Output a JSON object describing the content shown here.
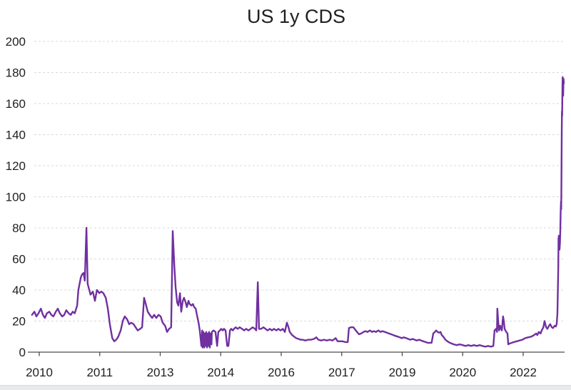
{
  "colors": {
    "line": "#7030A0",
    "gridline": "#D9D9D9",
    "axis": "#4D4D4D",
    "text": "#1F1F1F",
    "bottom_strip": "#E8E9EB",
    "background": "#FFFFFF"
  },
  "chart_data": {
    "type": "line",
    "title": "US 1y CDS",
    "legend": "none",
    "grid": "horizontal-dashed",
    "ylim": [
      0,
      200
    ],
    "xlim": [
      2009.8,
      2023.05
    ],
    "y_ticks": [
      0,
      20,
      40,
      60,
      80,
      100,
      120,
      140,
      160,
      180,
      200
    ],
    "x_ticks": [
      {
        "label": "2010",
        "pos": 2010
      },
      {
        "label": "2011",
        "pos": 2011.5
      },
      {
        "label": "2013",
        "pos": 2013
      },
      {
        "label": "2014",
        "pos": 2014.5
      },
      {
        "label": "2016",
        "pos": 2016
      },
      {
        "label": "2017",
        "pos": 2017.5
      },
      {
        "label": "2019",
        "pos": 2019
      },
      {
        "label": "2020",
        "pos": 2020.5
      },
      {
        "label": "2022",
        "pos": 2022
      }
    ],
    "series": [
      {
        "name": "US 1y CDS",
        "color": "#7030A0",
        "points": [
          [
            2009.82,
            24
          ],
          [
            2009.88,
            26
          ],
          [
            2009.93,
            23
          ],
          [
            2009.98,
            25
          ],
          [
            2010.04,
            28
          ],
          [
            2010.09,
            24
          ],
          [
            2010.14,
            22
          ],
          [
            2010.19,
            25
          ],
          [
            2010.25,
            26
          ],
          [
            2010.3,
            24
          ],
          [
            2010.35,
            23
          ],
          [
            2010.41,
            26
          ],
          [
            2010.46,
            28
          ],
          [
            2010.51,
            25
          ],
          [
            2010.57,
            23
          ],
          [
            2010.62,
            24
          ],
          [
            2010.67,
            27
          ],
          [
            2010.73,
            25
          ],
          [
            2010.78,
            24
          ],
          [
            2010.83,
            26
          ],
          [
            2010.88,
            25
          ],
          [
            2010.94,
            30
          ],
          [
            2010.97,
            40
          ],
          [
            2011.03,
            48
          ],
          [
            2011.06,
            50
          ],
          [
            2011.1,
            51
          ],
          [
            2011.13,
            46
          ],
          [
            2011.17,
            80
          ],
          [
            2011.2,
            44
          ],
          [
            2011.24,
            40
          ],
          [
            2011.27,
            37
          ],
          [
            2011.33,
            39
          ],
          [
            2011.38,
            33
          ],
          [
            2011.43,
            40
          ],
          [
            2011.49,
            38
          ],
          [
            2011.54,
            39
          ],
          [
            2011.59,
            38
          ],
          [
            2011.65,
            35
          ],
          [
            2011.7,
            28
          ],
          [
            2011.75,
            18
          ],
          [
            2011.81,
            9
          ],
          [
            2011.86,
            7
          ],
          [
            2011.91,
            8
          ],
          [
            2011.96,
            10
          ],
          [
            2012.02,
            14
          ],
          [
            2012.07,
            20
          ],
          [
            2012.12,
            23
          ],
          [
            2012.18,
            21
          ],
          [
            2012.23,
            18
          ],
          [
            2012.28,
            19
          ],
          [
            2012.34,
            18
          ],
          [
            2012.39,
            16
          ],
          [
            2012.44,
            14
          ],
          [
            2012.5,
            15
          ],
          [
            2012.55,
            16
          ],
          [
            2012.6,
            35
          ],
          [
            2012.64,
            31
          ],
          [
            2012.69,
            26
          ],
          [
            2012.74,
            24
          ],
          [
            2012.8,
            22
          ],
          [
            2012.85,
            24
          ],
          [
            2012.9,
            22
          ],
          [
            2012.96,
            24
          ],
          [
            2013.01,
            23
          ],
          [
            2013.06,
            19
          ],
          [
            2013.12,
            17
          ],
          [
            2013.17,
            13
          ],
          [
            2013.22,
            15
          ],
          [
            2013.27,
            16
          ],
          [
            2013.31,
            78
          ],
          [
            2013.35,
            55
          ],
          [
            2013.38,
            42
          ],
          [
            2013.42,
            32
          ],
          [
            2013.45,
            30
          ],
          [
            2013.49,
            38
          ],
          [
            2013.52,
            26
          ],
          [
            2013.56,
            33
          ],
          [
            2013.59,
            35
          ],
          [
            2013.63,
            32
          ],
          [
            2013.66,
            29
          ],
          [
            2013.7,
            33
          ],
          [
            2013.73,
            31
          ],
          [
            2013.77,
            30
          ],
          [
            2013.81,
            31
          ],
          [
            2013.84,
            29
          ],
          [
            2013.88,
            28
          ],
          [
            2013.91,
            24
          ],
          [
            2013.95,
            19
          ],
          [
            2013.98,
            14
          ],
          [
            2014.02,
            4
          ],
          [
            2014.04,
            14
          ],
          [
            2014.05,
            3
          ],
          [
            2014.07,
            13
          ],
          [
            2014.09,
            3
          ],
          [
            2014.11,
            12
          ],
          [
            2014.12,
            4
          ],
          [
            2014.14,
            13
          ],
          [
            2014.16,
            3
          ],
          [
            2014.18,
            12
          ],
          [
            2014.2,
            4
          ],
          [
            2014.21,
            13
          ],
          [
            2014.23,
            3
          ],
          [
            2014.25,
            12
          ],
          [
            2014.27,
            5
          ],
          [
            2014.28,
            13
          ],
          [
            2014.32,
            14
          ],
          [
            2014.37,
            13
          ],
          [
            2014.41,
            4
          ],
          [
            2014.44,
            13
          ],
          [
            2014.48,
            14
          ],
          [
            2014.51,
            15
          ],
          [
            2014.55,
            14
          ],
          [
            2014.58,
            15
          ],
          [
            2014.62,
            14
          ],
          [
            2014.66,
            4
          ],
          [
            2014.69,
            4
          ],
          [
            2014.73,
            14
          ],
          [
            2014.76,
            15
          ],
          [
            2014.8,
            14
          ],
          [
            2014.83,
            15
          ],
          [
            2014.87,
            16
          ],
          [
            2014.92,
            15
          ],
          [
            2014.97,
            16
          ],
          [
            2015.03,
            15
          ],
          [
            2015.08,
            14
          ],
          [
            2015.13,
            15
          ],
          [
            2015.19,
            14
          ],
          [
            2015.24,
            15
          ],
          [
            2015.29,
            16
          ],
          [
            2015.35,
            15
          ],
          [
            2015.38,
            14
          ],
          [
            2015.42,
            45
          ],
          [
            2015.45,
            15
          ],
          [
            2015.5,
            15
          ],
          [
            2015.56,
            16
          ],
          [
            2015.61,
            15
          ],
          [
            2015.66,
            14
          ],
          [
            2015.72,
            15
          ],
          [
            2015.77,
            14
          ],
          [
            2015.82,
            15
          ],
          [
            2015.88,
            14
          ],
          [
            2015.93,
            15
          ],
          [
            2015.98,
            14
          ],
          [
            2016.04,
            15
          ],
          [
            2016.09,
            13
          ],
          [
            2016.14,
            19
          ],
          [
            2016.18,
            16
          ],
          [
            2016.21,
            13
          ],
          [
            2016.27,
            11
          ],
          [
            2016.32,
            10
          ],
          [
            2016.37,
            9
          ],
          [
            2016.43,
            8.5
          ],
          [
            2016.48,
            8
          ],
          [
            2016.53,
            8
          ],
          [
            2016.6,
            7.5
          ],
          [
            2016.67,
            8
          ],
          [
            2016.74,
            8
          ],
          [
            2016.81,
            8.5
          ],
          [
            2016.87,
            9.5
          ],
          [
            2016.92,
            8
          ],
          [
            2016.99,
            7.5
          ],
          [
            2017.06,
            8
          ],
          [
            2017.13,
            7.5
          ],
          [
            2017.2,
            8
          ],
          [
            2017.27,
            7.5
          ],
          [
            2017.35,
            9
          ],
          [
            2017.4,
            7
          ],
          [
            2017.45,
            7
          ],
          [
            2017.52,
            7
          ],
          [
            2017.59,
            6.5
          ],
          [
            2017.65,
            6.5
          ],
          [
            2017.68,
            15.5
          ],
          [
            2017.73,
            16
          ],
          [
            2017.79,
            16
          ],
          [
            2017.82,
            15
          ],
          [
            2017.88,
            13
          ],
          [
            2017.93,
            11.5
          ],
          [
            2017.98,
            12
          ],
          [
            2018.04,
            13
          ],
          [
            2018.09,
            13.5
          ],
          [
            2018.14,
            13
          ],
          [
            2018.2,
            14
          ],
          [
            2018.25,
            13
          ],
          [
            2018.3,
            13.5
          ],
          [
            2018.35,
            13
          ],
          [
            2018.41,
            14
          ],
          [
            2018.46,
            13
          ],
          [
            2018.51,
            13.5
          ],
          [
            2018.57,
            13
          ],
          [
            2018.62,
            12.5
          ],
          [
            2018.67,
            12
          ],
          [
            2018.73,
            11.5
          ],
          [
            2018.78,
            11
          ],
          [
            2018.83,
            10.5
          ],
          [
            2018.89,
            10
          ],
          [
            2018.94,
            9.5
          ],
          [
            2018.99,
            9
          ],
          [
            2019.04,
            9.5
          ],
          [
            2019.1,
            9
          ],
          [
            2019.15,
            8.5
          ],
          [
            2019.2,
            8
          ],
          [
            2019.26,
            8.5
          ],
          [
            2019.31,
            8
          ],
          [
            2019.36,
            7.5
          ],
          [
            2019.42,
            8
          ],
          [
            2019.47,
            7.5
          ],
          [
            2019.52,
            7
          ],
          [
            2019.58,
            6.5
          ],
          [
            2019.63,
            6
          ],
          [
            2019.68,
            6
          ],
          [
            2019.73,
            6
          ],
          [
            2019.77,
            12
          ],
          [
            2019.81,
            13
          ],
          [
            2019.84,
            14
          ],
          [
            2019.88,
            13
          ],
          [
            2019.91,
            12.5
          ],
          [
            2019.95,
            13
          ],
          [
            2019.98,
            11
          ],
          [
            2020.02,
            10
          ],
          [
            2020.07,
            8
          ],
          [
            2020.12,
            7
          ],
          [
            2020.18,
            6
          ],
          [
            2020.23,
            5.5
          ],
          [
            2020.28,
            5
          ],
          [
            2020.35,
            4.5
          ],
          [
            2020.43,
            5
          ],
          [
            2020.5,
            4.5
          ],
          [
            2020.57,
            4
          ],
          [
            2020.64,
            4.5
          ],
          [
            2020.71,
            4
          ],
          [
            2020.78,
            4.5
          ],
          [
            2020.85,
            4
          ],
          [
            2020.92,
            4.5
          ],
          [
            2020.99,
            4
          ],
          [
            2021.06,
            3.5
          ],
          [
            2021.13,
            4
          ],
          [
            2021.2,
            3.5
          ],
          [
            2021.26,
            4
          ],
          [
            2021.29,
            14
          ],
          [
            2021.33,
            15
          ],
          [
            2021.35,
            13
          ],
          [
            2021.36,
            28
          ],
          [
            2021.38,
            20
          ],
          [
            2021.4,
            14
          ],
          [
            2021.42,
            15
          ],
          [
            2021.43,
            17
          ],
          [
            2021.47,
            14
          ],
          [
            2021.5,
            23
          ],
          [
            2021.52,
            20
          ],
          [
            2021.54,
            15
          ],
          [
            2021.58,
            13
          ],
          [
            2021.61,
            12
          ],
          [
            2021.63,
            5
          ],
          [
            2021.66,
            5.5
          ],
          [
            2021.72,
            6
          ],
          [
            2021.77,
            6.5
          ],
          [
            2021.84,
            7
          ],
          [
            2021.91,
            7.5
          ],
          [
            2021.98,
            8
          ],
          [
            2022.05,
            9
          ],
          [
            2022.12,
            9.5
          ],
          [
            2022.2,
            10
          ],
          [
            2022.27,
            11
          ],
          [
            2022.32,
            12
          ],
          [
            2022.35,
            11
          ],
          [
            2022.39,
            13
          ],
          [
            2022.43,
            12
          ],
          [
            2022.46,
            14
          ],
          [
            2022.5,
            16
          ],
          [
            2022.53,
            20
          ],
          [
            2022.57,
            16
          ],
          [
            2022.6,
            15
          ],
          [
            2022.64,
            17
          ],
          [
            2022.67,
            18
          ],
          [
            2022.71,
            16
          ],
          [
            2022.74,
            15.5
          ],
          [
            2022.78,
            17
          ],
          [
            2022.81,
            16.5
          ],
          [
            2022.83,
            18
          ],
          [
            2022.85,
            25
          ],
          [
            2022.87,
            55
          ],
          [
            2022.876,
            73
          ],
          [
            2022.885,
            75
          ],
          [
            2022.9,
            66
          ],
          [
            2022.912,
            70
          ],
          [
            2022.92,
            78
          ],
          [
            2022.929,
            90
          ],
          [
            2022.938,
            97
          ],
          [
            2022.943,
            92
          ],
          [
            2022.949,
            110
          ],
          [
            2022.956,
            140
          ],
          [
            2022.961,
            155
          ],
          [
            2022.966,
            152
          ],
          [
            2022.973,
            170
          ],
          [
            2022.978,
            177
          ],
          [
            2022.985,
            172
          ],
          [
            2022.991,
            165
          ],
          [
            2023.0,
            176
          ],
          [
            2023.009,
            173
          ]
        ]
      }
    ]
  }
}
